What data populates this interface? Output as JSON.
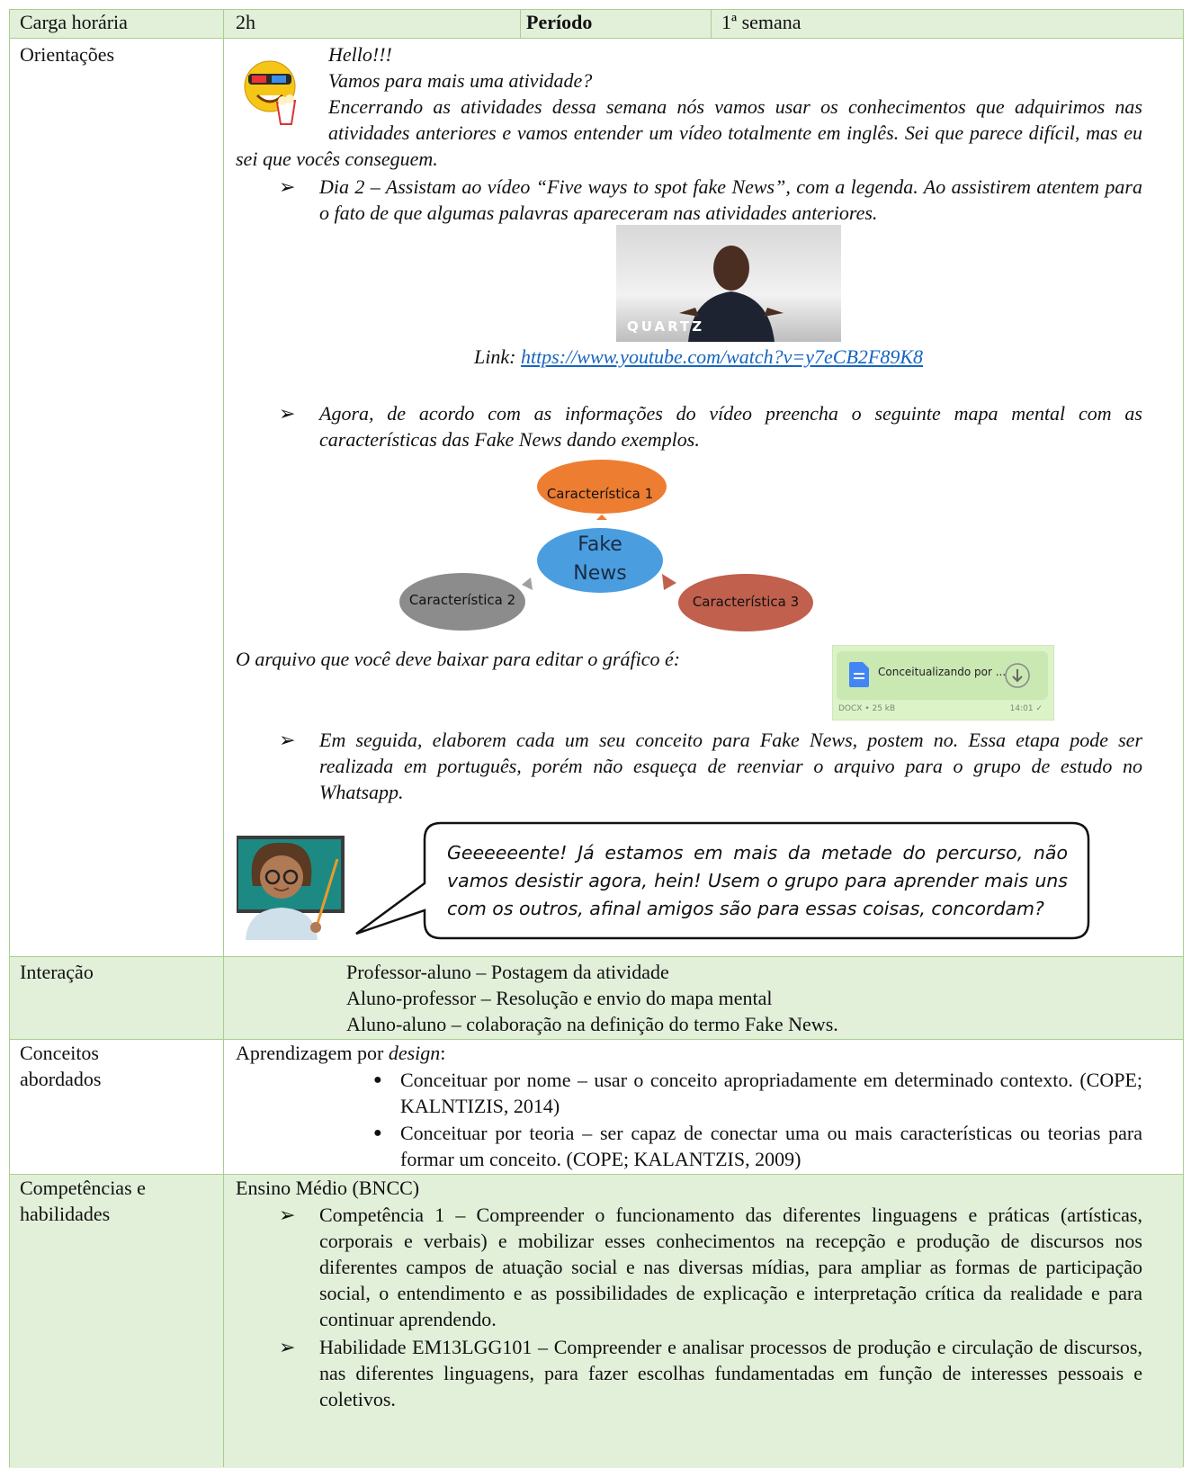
{
  "header": {
    "carga_label": "Carga horária",
    "carga_value": "2h",
    "periodo_label": "Período",
    "periodo_value": "1ª semana"
  },
  "orientacoes": {
    "label": "Orientações",
    "greeting": [
      "Hello!!!",
      "Vamos para mais uma atividade?"
    ],
    "intro": "Encerrando as atividades dessa semana nós vamos usar os conhecimentos que adquirimos nas atividades anteriores e vamos entender um vídeo totalmente em inglês. Sei que parece difícil, mas eu sei que vocês conseguem.",
    "item1": "Dia 2 – Assistam ao vídeo “Five ways to spot fake News”, com a legenda. Ao assistirem atentem para o fato de que algumas palavras apareceram nas atividades anteriores.",
    "thumbnail_caption": "QUARTZ",
    "link_label": "Link:",
    "link": "https://www.youtube.com/watch?v=y7eCB2F89K8",
    "item2": "Agora, de acordo com as informações do vídeo preencha o seguinte mapa mental com as características das Fake News dando exemplos.",
    "mind_map": {
      "center": "Fake News",
      "nodes": [
        "Característica 1",
        "Característica 2",
        "Característica 3"
      ]
    },
    "file_prompt": "O arquivo que você deve baixar para editar o gráfico é:",
    "file": {
      "name": "Conceitualizando por ...",
      "meta": "DOCX • 25 kB",
      "time": "14:01 ✓"
    },
    "item3": "Em seguida, elaborem cada um seu conceito para Fake News, postem no. Essa etapa pode ser realizada em português, porém não esqueça de reenviar o arquivo para o grupo de estudo no Whatsapp.",
    "speech": "Geeeeeente! Já estamos em mais da metade do percurso, não vamos desistir agora, hein! Usem o grupo para aprender mais uns com os outros, afinal amigos são para essas coisas, concordam?"
  },
  "interacao": {
    "label": "Interação",
    "lines": [
      "Professor-aluno – Postagem da atividade",
      "Aluno-professor – Resolução e envio do mapa mental",
      "Aluno-aluno – colaboração na definição do termo Fake News."
    ]
  },
  "conceitos": {
    "label": "Conceitos abordados",
    "intro_prefix": "Aprendizagem por",
    "intro_emphasis": "design",
    "intro_suffix": ":",
    "items": [
      "Conceituar por nome – usar o conceito apropriadamente em determinado contexto. (COPE; KALNTIZIS, 2014)",
      "Conceituar por teoria – ser capaz de conectar uma ou mais características ou teorias para formar um conceito. (COPE; KALANTZIS, 2009)"
    ]
  },
  "competencias": {
    "label": "Competências e habilidades",
    "intro": "Ensino Médio (BNCC)",
    "items": [
      "Competência 1 – Compreender o funcionamento das diferentes linguagens e práticas (artísticas, corporais e verbais) e mobilizar esses conhecimentos na recepção e produção de discursos nos diferentes campos de atuação social e nas diversas mídias, para ampliar as formas de participação social, o entendimento e as possibilidades de explicação e interpretação crítica da realidade e para continuar aprendendo.",
      "Habilidade EM13LGG101 – Compreender e analisar processos de produção e circulação de discursos, nas diferentes linguagens, para fazer escolhas fundamentadas em função de interesses pessoais e coletivos."
    ]
  }
}
